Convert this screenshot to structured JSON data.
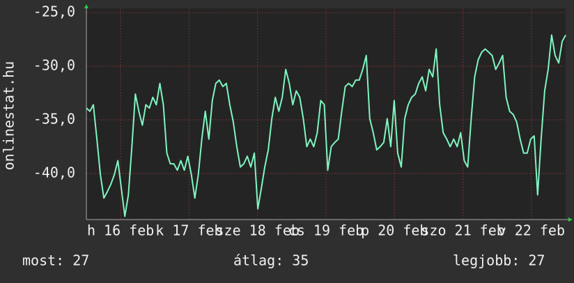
{
  "chart_data": {
    "type": "line",
    "ylabel": "onlinestat.hu",
    "ylim": [
      -44.3,
      -25
    ],
    "yticks": [
      {
        "value": -25,
        "label": "-25,0"
      },
      {
        "value": -30,
        "label": "-30,0"
      },
      {
        "value": -35,
        "label": "-35,0"
      },
      {
        "value": -40,
        "label": "-40,0"
      }
    ],
    "xlim": [
      0,
      7
    ],
    "xticks": [
      {
        "value": 0.5,
        "label": "h 16 feb"
      },
      {
        "value": 1.5,
        "label": "k 17 feb"
      },
      {
        "value": 2.5,
        "label": "sze 18 feb"
      },
      {
        "value": 3.5,
        "label": "cs 19 feb"
      },
      {
        "value": 4.5,
        "label": "p 20 feb"
      },
      {
        "value": 5.5,
        "label": "szo 21 feb"
      },
      {
        "value": 6.5,
        "label": "v 22 feb"
      }
    ],
    "grid": true,
    "series": [
      {
        "color": "#7ff5c0",
        "values": [
          -33.9,
          -34.2,
          -33.6,
          -36.8,
          -40.1,
          -42.3,
          -41.7,
          -41.0,
          -40.1,
          -38.8,
          -41.4,
          -44.0,
          -42.0,
          -37.5,
          -32.6,
          -34.2,
          -35.5,
          -33.6,
          -33.9,
          -32.9,
          -33.6,
          -31.6,
          -33.6,
          -38.1,
          -39.1,
          -39.1,
          -39.7,
          -38.8,
          -39.7,
          -38.4,
          -40.1,
          -42.3,
          -40.1,
          -36.8,
          -34.2,
          -36.8,
          -33.2,
          -31.6,
          -31.3,
          -31.9,
          -31.6,
          -33.6,
          -35.2,
          -37.5,
          -39.4,
          -39.1,
          -38.4,
          -39.4,
          -38.1,
          -43.3,
          -41.4,
          -39.4,
          -37.8,
          -34.9,
          -32.9,
          -34.2,
          -32.9,
          -30.3,
          -31.6,
          -33.6,
          -32.3,
          -32.9,
          -34.9,
          -37.5,
          -36.8,
          -37.5,
          -36.2,
          -33.2,
          -33.6,
          -39.7,
          -37.5,
          -37.1,
          -36.8,
          -34.2,
          -31.9,
          -31.6,
          -31.9,
          -31.3,
          -31.3,
          -30.3,
          -29.0,
          -34.9,
          -36.2,
          -37.8,
          -37.5,
          -37.1,
          -34.9,
          -37.5,
          -33.2,
          -38.1,
          -39.4,
          -34.9,
          -33.6,
          -32.9,
          -32.6,
          -31.6,
          -31.0,
          -32.3,
          -30.3,
          -31.0,
          -28.4,
          -33.6,
          -36.2,
          -36.8,
          -37.5,
          -36.8,
          -37.5,
          -36.2,
          -38.8,
          -39.4,
          -34.9,
          -31.0,
          -29.4,
          -28.7,
          -28.4,
          -28.7,
          -29.0,
          -30.3,
          -29.7,
          -29.0,
          -32.9,
          -34.2,
          -34.5,
          -35.2,
          -36.8,
          -38.1,
          -38.1,
          -36.8,
          -36.5,
          -42.0,
          -36.8,
          -32.3,
          -30.3,
          -27.1,
          -29.0,
          -29.7,
          -27.7,
          -27.1
        ]
      }
    ],
    "footer": [
      "most: 27",
      "átlag: 35",
      "legjobb: 27"
    ]
  }
}
